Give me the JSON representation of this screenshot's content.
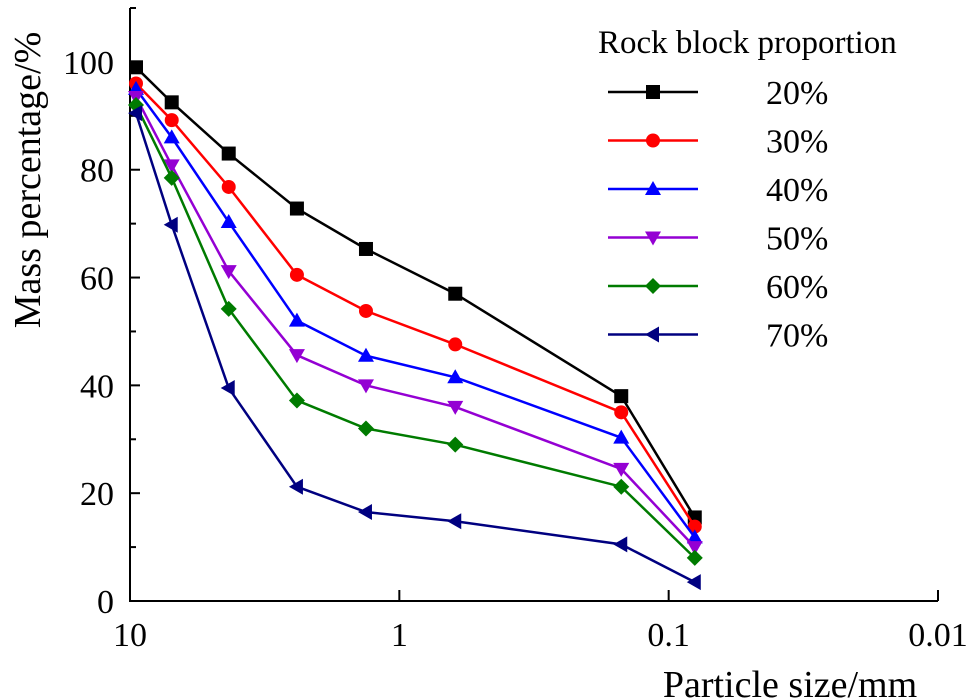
{
  "chart_data": {
    "type": "line",
    "title": "",
    "xlabel": "Particle size/mm",
    "ylabel": "Mass percentage/%",
    "x_scale": "log",
    "x_reversed": true,
    "xlim": [
      10,
      0.01
    ],
    "ylim": [
      0,
      110
    ],
    "x_ticks": [
      10,
      1,
      0.1,
      0.01
    ],
    "x_tick_labels": [
      "10",
      "1",
      "0.1",
      "0.01"
    ],
    "y_ticks": [
      0,
      20,
      40,
      60,
      80,
      100
    ],
    "y_tick_labels": [
      "0",
      "20",
      "40",
      "60",
      "80",
      "100"
    ],
    "grid": false,
    "legend_title": "Rock block proportion",
    "legend_position": "top-right",
    "x": [
      9.5,
      7.0,
      4.3,
      2.4,
      1.33,
      0.62,
      0.15,
      0.08
    ],
    "series": [
      {
        "name": "20%",
        "color": "#000000",
        "marker": "square",
        "values": [
          99,
          92.5,
          83,
          72.8,
          65.3,
          57,
          38,
          15.5
        ]
      },
      {
        "name": "30%",
        "color": "#ff0000",
        "marker": "circle",
        "values": [
          96,
          89.2,
          76.8,
          60.5,
          53.8,
          47.6,
          35,
          13.8
        ]
      },
      {
        "name": "40%",
        "color": "#0000ff",
        "marker": "triangle-up",
        "values": [
          95,
          86,
          70.3,
          52,
          45.5,
          41.5,
          30.3,
          11.8
        ]
      },
      {
        "name": "50%",
        "color": "#9400d3",
        "marker": "triangle-down",
        "values": [
          93.5,
          80.8,
          61.2,
          45.6,
          40,
          36,
          24.5,
          10
        ]
      },
      {
        "name": "60%",
        "color": "#007b00",
        "marker": "diamond",
        "values": [
          92,
          78.5,
          54.2,
          37.2,
          32,
          29,
          21.2,
          8
        ]
      },
      {
        "name": "70%",
        "color": "#000080",
        "marker": "triangle-left",
        "values": [
          90.5,
          69.8,
          39.5,
          21.2,
          16.5,
          14.8,
          10.5,
          3.5
        ]
      }
    ]
  }
}
